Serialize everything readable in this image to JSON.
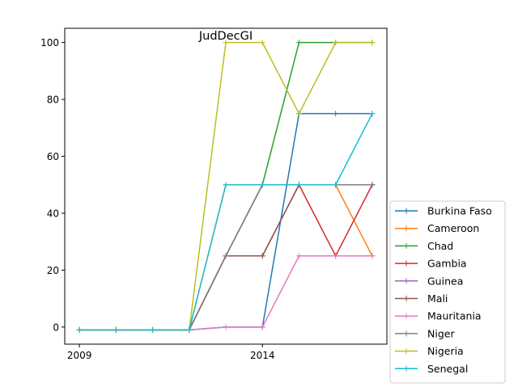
{
  "chart_data": {
    "type": "line",
    "title": "JudDecGI",
    "xlabel": "",
    "ylabel": "",
    "x": [
      2009,
      2010,
      2011,
      2012,
      2013,
      2014,
      2015,
      2016,
      2017
    ],
    "x_ticks": [
      2009,
      2014
    ],
    "xlim": [
      2008.6,
      2017.4
    ],
    "y_ticks": [
      0,
      20,
      40,
      60,
      80,
      100
    ],
    "ylim": [
      -6,
      105
    ],
    "grid": false,
    "legend_placement": "lower-right, outside plot",
    "series": [
      {
        "name": "Burkina Faso",
        "color": "#1f77b4",
        "values": [
          -1,
          -1,
          -1,
          -1,
          0,
          0,
          75,
          75,
          75
        ]
      },
      {
        "name": "Cameroon",
        "color": "#ff7f0e",
        "values": [
          -1,
          -1,
          -1,
          -1,
          50,
          50,
          50,
          50,
          25
        ]
      },
      {
        "name": "Chad",
        "color": "#2ca02c",
        "values": [
          -1,
          -1,
          -1,
          -1,
          25,
          50,
          100,
          100,
          100
        ]
      },
      {
        "name": "Gambia",
        "color": "#d62728",
        "values": [
          -1,
          -1,
          -1,
          -1,
          25,
          25,
          50,
          25,
          50
        ]
      },
      {
        "name": "Guinea",
        "color": "#9467bd",
        "values": [
          -1,
          -1,
          -1,
          -1,
          25,
          50,
          50,
          50,
          50
        ]
      },
      {
        "name": "Mali",
        "color": "#8c564b",
        "values": [
          -1,
          -1,
          -1,
          -1,
          25,
          25,
          50,
          50,
          50
        ]
      },
      {
        "name": "Mauritania",
        "color": "#e377c2",
        "values": [
          -1,
          -1,
          -1,
          -1,
          0,
          0,
          25,
          25,
          25
        ]
      },
      {
        "name": "Niger",
        "color": "#7f7f7f",
        "values": [
          -1,
          -1,
          -1,
          -1,
          25,
          50,
          50,
          50,
          50
        ]
      },
      {
        "name": "Nigeria",
        "color": "#bcbd22",
        "values": [
          -1,
          -1,
          -1,
          -1,
          100,
          100,
          75,
          100,
          100
        ]
      },
      {
        "name": "Senegal",
        "color": "#17becf",
        "values": [
          -1,
          -1,
          -1,
          -1,
          50,
          50,
          50,
          50,
          75
        ]
      }
    ]
  }
}
